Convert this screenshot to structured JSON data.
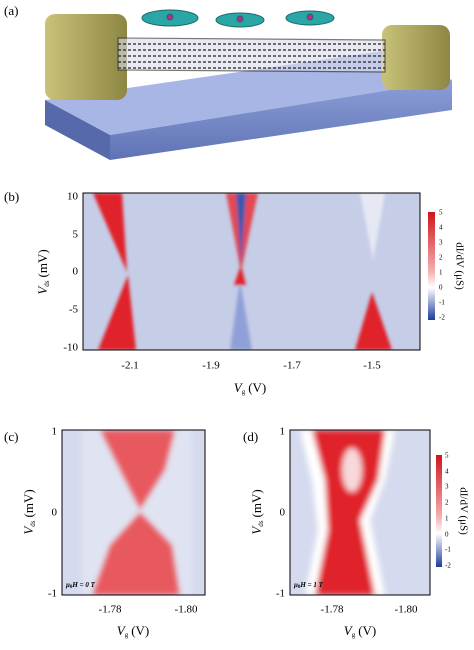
{
  "panel_a": {
    "label": "(a)"
  },
  "panel_b": {
    "label": "(b)",
    "y_ticks": [
      "10",
      "5",
      "0",
      "-5",
      "-10"
    ],
    "x_ticks": [
      "-2.1",
      "-1.9",
      "-1.7",
      "-1.5"
    ],
    "y_label": {
      "symbol": "V",
      "sub": "ds",
      "unit": "(mV)"
    },
    "x_label": {
      "symbol": "V",
      "sub": "g",
      "unit": "(V)"
    },
    "colorbar": {
      "ticks": [
        "5",
        "4",
        "3",
        "2",
        "1",
        "0",
        "-1",
        "-2"
      ],
      "label": "dI/dV (μS)"
    }
  },
  "panel_c": {
    "label": "(c)",
    "y_ticks": [
      "1",
      "0",
      "-1"
    ],
    "x_ticks": [
      "-1.78",
      "-1.80"
    ],
    "y_label": {
      "symbol": "V",
      "sub": "ds",
      "unit": "(mV)"
    },
    "x_label": {
      "symbol": "V",
      "sub": "g",
      "unit": "(V)"
    },
    "annotation": {
      "symbol": "μ",
      "sub": "0",
      "rest": "H = 0 T"
    }
  },
  "panel_d": {
    "label": "(d)",
    "y_ticks": [
      "1",
      "0",
      "-1"
    ],
    "x_ticks": [
      "-1.78",
      "-1.80"
    ],
    "y_label": {
      "symbol": "V",
      "sub": "ds",
      "unit": "(mV)"
    },
    "x_label": {
      "symbol": "V",
      "sub": "g",
      "unit": "(V)"
    },
    "annotation": {
      "symbol": "μ",
      "sub": "0",
      "rest": "H = 1 T"
    },
    "colorbar": {
      "ticks": [
        "5",
        "4",
        "3",
        "2",
        "1",
        "0",
        "-1",
        "-2"
      ],
      "label": "dI/dV (μS)"
    }
  }
}
